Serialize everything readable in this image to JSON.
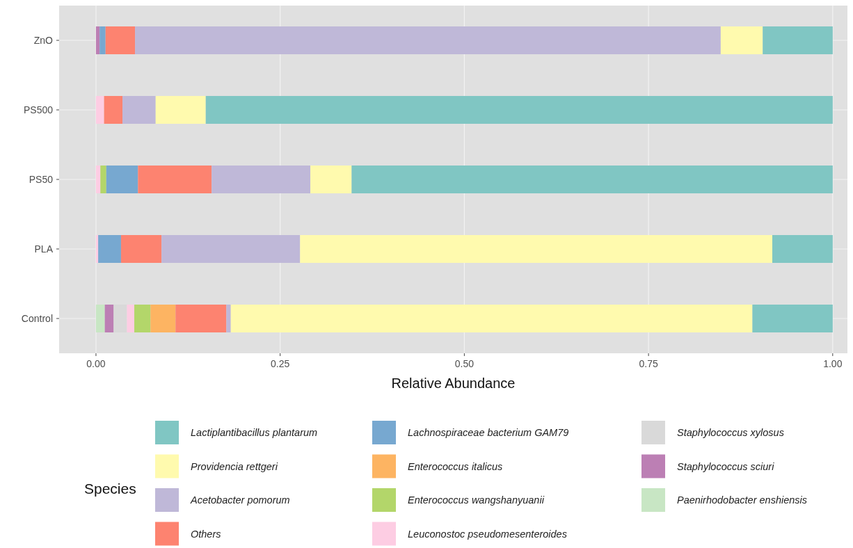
{
  "chart_data": {
    "type": "bar",
    "orientation": "horizontal",
    "stacked": true,
    "xlabel": "Relative Abundance",
    "legend_title": "Species",
    "legend": "bottom",
    "grid": true,
    "categories": [
      "ZnO",
      "PS500",
      "PS50",
      "PLA",
      "Control"
    ],
    "xlim": [
      -0.05,
      1.02
    ],
    "xticks": [
      {
        "value": 0,
        "label": "0.00"
      },
      {
        "value": 0.25,
        "label": "0.25"
      },
      {
        "value": 0.5,
        "label": "0.50"
      },
      {
        "value": 0.75,
        "label": "0.75"
      },
      {
        "value": 1,
        "label": "1.00"
      }
    ],
    "series": [
      {
        "name": "Paenirhodobacter enshiensis",
        "color": "#c8e6c4",
        "values": [
          0,
          0,
          0,
          0,
          0.012
        ]
      },
      {
        "name": "Staphylococcus sciuri",
        "color": "#bc7fb4",
        "values": [
          0.005,
          0,
          0,
          0,
          0.012
        ]
      },
      {
        "name": "Staphylococcus xylosus",
        "color": "#d9d9d9",
        "values": [
          0,
          0,
          0,
          0,
          0.018
        ]
      },
      {
        "name": "Leuconostoc pseudomesenteroides",
        "color": "#fdcde3",
        "values": [
          0,
          0.011,
          0.006,
          0.003,
          0.01
        ]
      },
      {
        "name": "Enterococcus wangshanyuanii",
        "color": "#b3d66a",
        "values": [
          0,
          0,
          0.008,
          0,
          0.022
        ]
      },
      {
        "name": "Enterococcus italicus",
        "color": "#fdb462",
        "values": [
          0,
          0,
          0,
          0,
          0.034
        ]
      },
      {
        "name": "Lachnospiraceae bacterium GAM79",
        "color": "#77a8d0",
        "values": [
          0.008,
          0,
          0.043,
          0.031,
          0
        ]
      },
      {
        "name": "Others",
        "color": "#fd8370",
        "values": [
          0.04,
          0.025,
          0.1,
          0.055,
          0.069
        ]
      },
      {
        "name": "Acetobacter pomorum",
        "color": "#bfb8d8",
        "values": [
          0.795,
          0.045,
          0.134,
          0.188,
          0.006
        ]
      },
      {
        "name": "Providencia rettgeri",
        "color": "#fffaae",
        "values": [
          0.057,
          0.068,
          0.056,
          0.641,
          0.708
        ]
      },
      {
        "name": "Lactiplantibacillus plantarum",
        "color": "#80c6c3",
        "values": [
          0.095,
          0.851,
          0.653,
          0.082,
          0.109
        ]
      }
    ]
  }
}
